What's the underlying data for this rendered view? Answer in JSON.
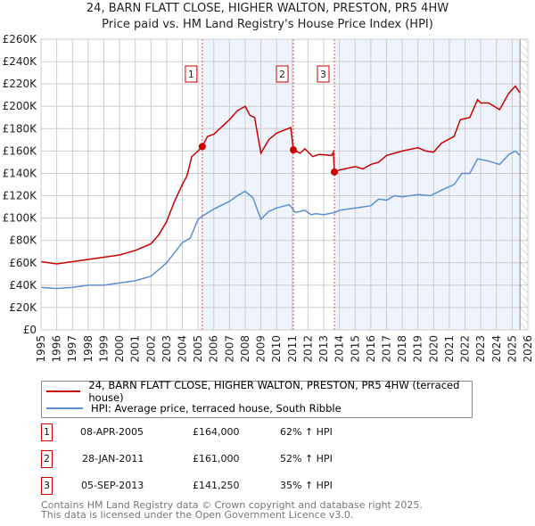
{
  "header": {
    "title": "24, BARN FLATT CLOSE, HIGHER WALTON, PRESTON, PR5 4HW",
    "subtitle": "Price paid vs. HM Land Registry's House Price Index (HPI)"
  },
  "chart_data": {
    "type": "line",
    "title": "24, BARN FLATT CLOSE, HIGHER WALTON, PRESTON, PR5 4HW",
    "xlim": [
      1995,
      2026
    ],
    "ylim": [
      0,
      260000
    ],
    "yticks": [
      "£0",
      "£20K",
      "£40K",
      "£60K",
      "£80K",
      "£100K",
      "£120K",
      "£140K",
      "£160K",
      "£180K",
      "£200K",
      "£220K",
      "£240K",
      "£260K"
    ],
    "xticks": [
      "1995",
      "1996",
      "1997",
      "1998",
      "1999",
      "2000",
      "2001",
      "2002",
      "2003",
      "2004",
      "2005",
      "2006",
      "2007",
      "2008",
      "2009",
      "2010",
      "2011",
      "2012",
      "2013",
      "2014",
      "2015",
      "2016",
      "2017",
      "2018",
      "2019",
      "2020",
      "2021",
      "2022",
      "2023",
      "2024",
      "2025",
      "2026"
    ],
    "grid": true,
    "series": [
      {
        "name": "24, BARN FLATT CLOSE, HIGHER WALTON, PRESTON, PR5 4HW (terraced house)",
        "color": "#cc0000",
        "points": [
          [
            1995,
            61
          ],
          [
            1996,
            59
          ],
          [
            1997,
            61
          ],
          [
            1998,
            63
          ],
          [
            1999,
            65
          ],
          [
            2000,
            67
          ],
          [
            2001,
            71
          ],
          [
            2002,
            77
          ],
          [
            2002.5,
            85
          ],
          [
            2003,
            97
          ],
          [
            2003.5,
            115
          ],
          [
            2004,
            130
          ],
          [
            2004.3,
            138
          ],
          [
            2004.6,
            155
          ],
          [
            2005,
            160
          ],
          [
            2005.27,
            164
          ],
          [
            2005.6,
            173
          ],
          [
            2006,
            175
          ],
          [
            2007,
            188
          ],
          [
            2007.5,
            196
          ],
          [
            2008,
            200
          ],
          [
            2008.3,
            192
          ],
          [
            2008.6,
            190
          ],
          [
            2009,
            158
          ],
          [
            2009.5,
            170
          ],
          [
            2010,
            176
          ],
          [
            2010.9,
            181
          ],
          [
            2011.07,
            161
          ],
          [
            2011.5,
            158
          ],
          [
            2011.8,
            162
          ],
          [
            2012.3,
            155
          ],
          [
            2012.7,
            157
          ],
          [
            2013.5,
            156
          ],
          [
            2013.62,
            159
          ],
          [
            2013.68,
            141.25
          ],
          [
            2014,
            143
          ],
          [
            2015,
            146
          ],
          [
            2015.5,
            144
          ],
          [
            2016,
            148
          ],
          [
            2016.5,
            150
          ],
          [
            2017,
            156
          ],
          [
            2017.5,
            158
          ],
          [
            2018,
            160
          ],
          [
            2019,
            163
          ],
          [
            2019.5,
            160
          ],
          [
            2020,
            159
          ],
          [
            2020.5,
            167
          ],
          [
            2021.3,
            173
          ],
          [
            2021.7,
            188
          ],
          [
            2022.3,
            190
          ],
          [
            2022.8,
            206
          ],
          [
            2023,
            203
          ],
          [
            2023.5,
            203
          ],
          [
            2024.2,
            197
          ],
          [
            2024.8,
            212
          ],
          [
            2025.2,
            218
          ],
          [
            2025.5,
            212
          ]
        ]
      },
      {
        "name": "HPI: Average price, terraced house, South Ribble",
        "color": "#5b8fd4",
        "points": [
          [
            1995,
            38
          ],
          [
            1996,
            37
          ],
          [
            1997,
            38
          ],
          [
            1998,
            40
          ],
          [
            1999,
            40
          ],
          [
            2000,
            42
          ],
          [
            2001,
            44
          ],
          [
            2002,
            48
          ],
          [
            2003,
            60
          ],
          [
            2004,
            78
          ],
          [
            2004.5,
            82
          ],
          [
            2005,
            99
          ],
          [
            2005.3,
            102
          ],
          [
            2006,
            108
          ],
          [
            2007,
            115
          ],
          [
            2007.5,
            120
          ],
          [
            2008,
            124
          ],
          [
            2008.5,
            118
          ],
          [
            2009,
            99
          ],
          [
            2009.5,
            106
          ],
          [
            2010,
            109
          ],
          [
            2010.8,
            112
          ],
          [
            2011.2,
            105
          ],
          [
            2011.8,
            107
          ],
          [
            2012.2,
            103
          ],
          [
            2012.5,
            104
          ],
          [
            2013,
            103
          ],
          [
            2013.7,
            105
          ],
          [
            2014,
            107
          ],
          [
            2015,
            109
          ],
          [
            2016,
            111
          ],
          [
            2016.5,
            117
          ],
          [
            2017,
            116
          ],
          [
            2017.5,
            120
          ],
          [
            2018,
            119
          ],
          [
            2019,
            121
          ],
          [
            2019.8,
            120
          ],
          [
            2020.5,
            125
          ],
          [
            2021.3,
            130
          ],
          [
            2021.8,
            140
          ],
          [
            2022.3,
            140
          ],
          [
            2022.8,
            153
          ],
          [
            2023.5,
            151
          ],
          [
            2024.2,
            148
          ],
          [
            2024.8,
            157
          ],
          [
            2025.2,
            160
          ],
          [
            2025.5,
            156
          ]
        ]
      }
    ],
    "sales": [
      {
        "label": "1",
        "x": 2005.27,
        "y": 164
      },
      {
        "label": "2",
        "x": 2011.07,
        "y": 161
      },
      {
        "label": "3",
        "x": 2013.68,
        "y": 141.25
      }
    ],
    "y_unit": "£K"
  },
  "legend": {
    "items": [
      "24, BARN FLATT CLOSE, HIGHER WALTON, PRESTON, PR5 4HW (terraced house)",
      "HPI: Average price, terraced house, South Ribble"
    ]
  },
  "table": [
    {
      "num": "1",
      "date": "08-APR-2005",
      "price": "£164,000",
      "hpi": "62% ↑ HPI"
    },
    {
      "num": "2",
      "date": "28-JAN-2011",
      "price": "£161,000",
      "hpi": "52% ↑ HPI"
    },
    {
      "num": "3",
      "date": "05-SEP-2013",
      "price": "£141,250",
      "hpi": "35% ↑ HPI"
    }
  ],
  "footer": {
    "line1": "Contains HM Land Registry data © Crown copyright and database right 2025.",
    "line2": "This data is licensed under the Open Government Licence v3.0."
  }
}
